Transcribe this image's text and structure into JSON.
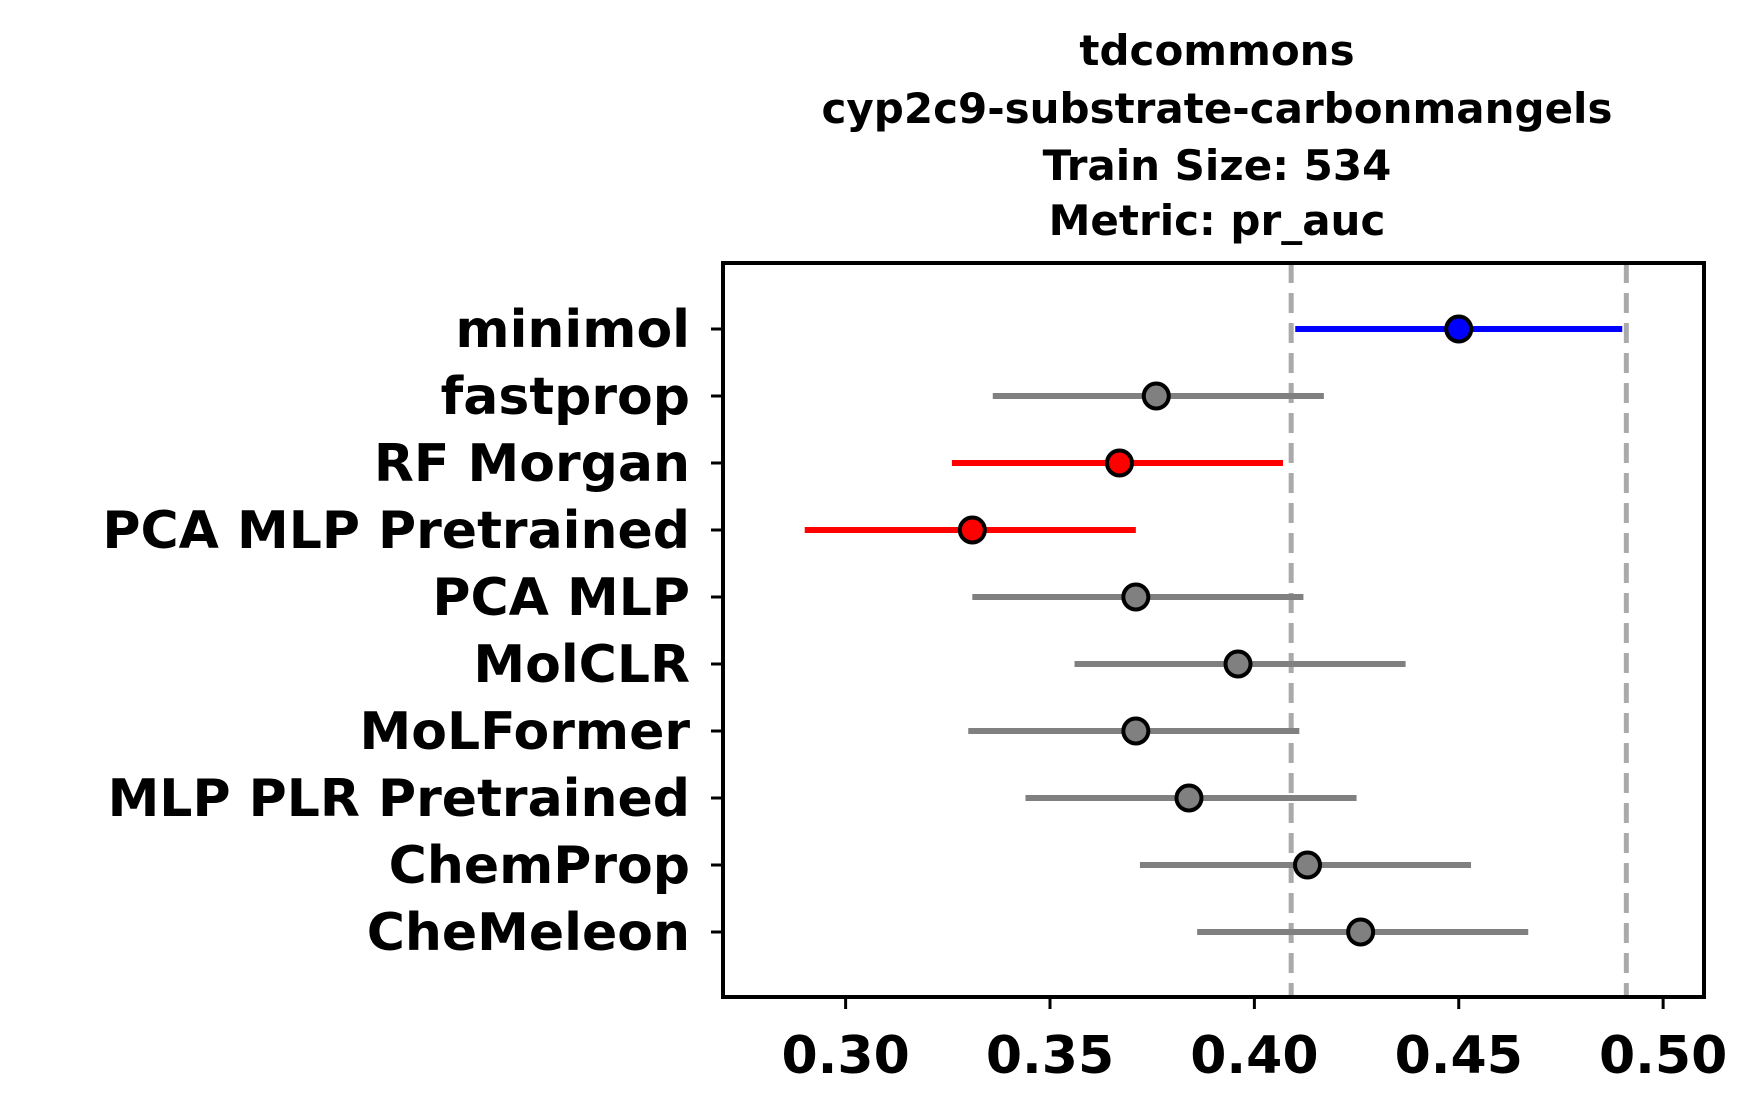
{
  "chart_data": {
    "type": "errorbar",
    "title": [
      "tdcommons",
      "cyp2c9-substrate-carbonmangels",
      "Train Size: 534",
      "Metric: pr_auc"
    ],
    "xlabel": "",
    "ylabel": "",
    "xlim": [
      0.27,
      0.51
    ],
    "xticks": [
      0.3,
      0.35,
      0.4,
      0.45,
      0.5
    ],
    "xtick_labels": [
      "0.30",
      "0.35",
      "0.40",
      "0.45",
      "0.50"
    ],
    "reference_lines": [
      0.409,
      0.491
    ],
    "reference_line_style": "dashed",
    "grid": false,
    "models": [
      {
        "name": "minimol",
        "value": 0.45,
        "low": 0.41,
        "high": 0.49,
        "color": "#0000ff"
      },
      {
        "name": "fastprop",
        "value": 0.376,
        "low": 0.336,
        "high": 0.417,
        "color": "#808080"
      },
      {
        "name": "RF Morgan",
        "value": 0.367,
        "low": 0.326,
        "high": 0.407,
        "color": "#ff0000"
      },
      {
        "name": "PCA MLP Pretrained",
        "value": 0.331,
        "low": 0.29,
        "high": 0.371,
        "color": "#ff0000"
      },
      {
        "name": "PCA MLP",
        "value": 0.371,
        "low": 0.331,
        "high": 0.412,
        "color": "#808080"
      },
      {
        "name": "MolCLR",
        "value": 0.396,
        "low": 0.356,
        "high": 0.437,
        "color": "#808080"
      },
      {
        "name": "MoLFormer",
        "value": 0.371,
        "low": 0.33,
        "high": 0.411,
        "color": "#808080"
      },
      {
        "name": "MLP PLR Pretrained",
        "value": 0.384,
        "low": 0.344,
        "high": 0.425,
        "color": "#808080"
      },
      {
        "name": "ChemProp",
        "value": 0.413,
        "low": 0.372,
        "high": 0.453,
        "color": "#808080"
      },
      {
        "name": "CheMeleon",
        "value": 0.426,
        "low": 0.386,
        "high": 0.467,
        "color": "#808080"
      }
    ]
  }
}
